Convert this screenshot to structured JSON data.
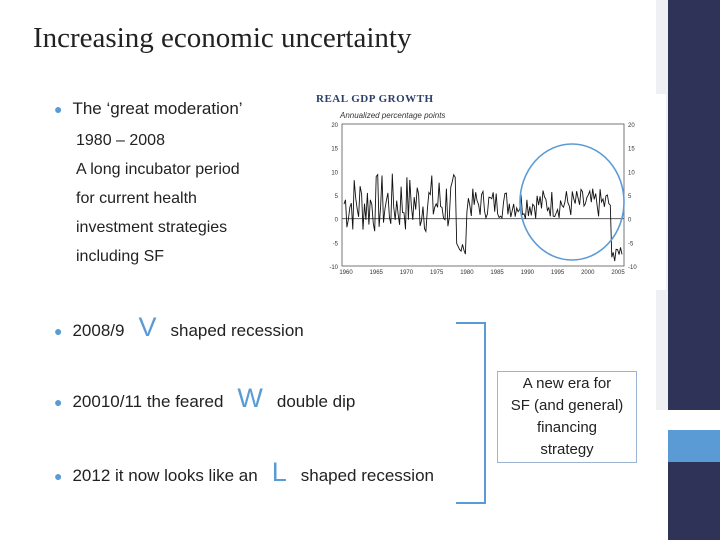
{
  "slide": {
    "title": "Increasing economic uncertainty",
    "bullets": [
      {
        "text": "The ‘great moderation’"
      },
      {
        "prefix": "2008/9",
        "letter": "V",
        "suffix": "shaped recession"
      },
      {
        "prefix": "20010/11 the feared",
        "letter": "W",
        "suffix": "double dip"
      },
      {
        "prefix": "2012  it now looks like an",
        "letter": "L",
        "suffix": "shaped recession"
      }
    ],
    "sub_lines": [
      "1980 – 2008",
      "A long incubator period",
      "for current health",
      "investment strategies",
      "including SF"
    ],
    "note_lines": [
      "A new era for",
      "SF (and general)",
      "financing",
      "strategy"
    ]
  },
  "chart": {
    "title": "REAL GDP GROWTH",
    "subtitle": "Annualized percentage points",
    "y_ticks": [
      "20",
      "15",
      "10",
      "5",
      "0",
      "-5",
      "-10"
    ],
    "x_ticks": [
      "1960",
      "1965",
      "1970",
      "1975",
      "1980",
      "1985",
      "1990",
      "1995",
      "2000",
      "2005"
    ],
    "line_color": "#111111",
    "highlight_color": "#5b9bd5"
  },
  "colors": {
    "accent": "#5b9bd5",
    "navy": "#2e3357"
  }
}
